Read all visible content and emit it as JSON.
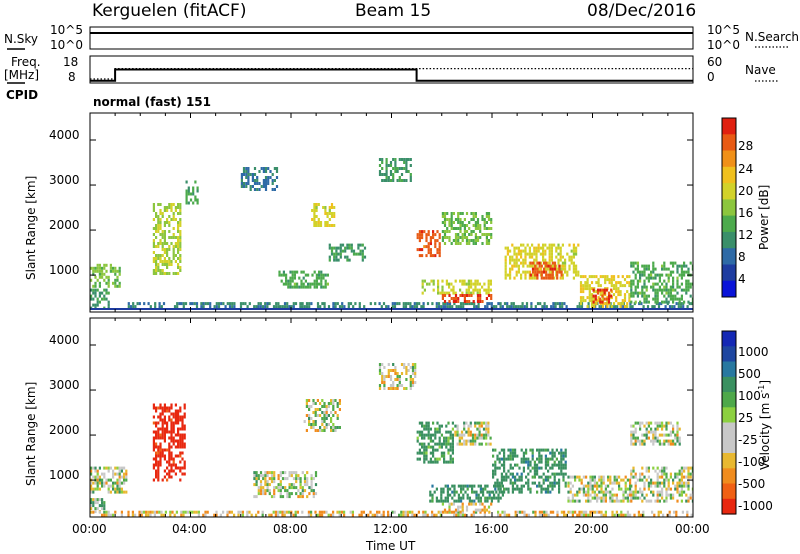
{
  "header": {
    "title": "Kerguelen (fitACF)",
    "beam": "Beam 15",
    "date": "08/Dec/2016"
  },
  "nsky_panel": {
    "label": "N.Sky",
    "left_ticks": [
      "10^5",
      "10^0"
    ],
    "right_label": "N.Search",
    "right_ticks": [
      "10^5",
      "10^0"
    ]
  },
  "freq_panel": {
    "label_line1": "Freq.",
    "label_line2": "[MHz]",
    "left_ticks": [
      "18",
      "8"
    ],
    "right_label": "Nave",
    "right_ticks": [
      "60",
      "0"
    ],
    "freq_segments": [
      {
        "t_start": 0.0,
        "t_end": 1.0,
        "mhz": 8.8
      },
      {
        "t_start": 1.0,
        "t_end": 13.0,
        "mhz": 13.0
      },
      {
        "t_start": 13.0,
        "t_end": 24.0,
        "mhz": 8.8
      }
    ],
    "nave_segments": [
      {
        "t_start": 0.0,
        "t_end": 1.0,
        "value": 9
      },
      {
        "t_start": 1.0,
        "t_end": 24.0,
        "value": 32
      }
    ]
  },
  "cpid_panel": {
    "label": "CPID",
    "program": "normal (fast) 151"
  },
  "colorbars": {
    "power": {
      "label": "Power [dB]",
      "ticks": [
        "4",
        "8",
        "12",
        "16",
        "20",
        "24",
        "28"
      ],
      "colors": [
        "#0a14d8",
        "#1e3ca0",
        "#2e6aa6",
        "#3a8f6a",
        "#4caa4c",
        "#8cc63e",
        "#d2d22a",
        "#f0c01e",
        "#f09018",
        "#e85a14",
        "#e02010"
      ]
    },
    "velocity": {
      "label_main": "Velocity",
      "label_unit": "[m s",
      "label_exp": "-1",
      "label_close": "]",
      "ticks": [
        "1000",
        "500",
        "100",
        "25",
        "-25",
        "-100",
        "-500",
        "-1000"
      ],
      "colors": [
        "#1428b4",
        "#1e46a0",
        "#2878a0",
        "#3a9060",
        "#4ea84a",
        "#8cd040",
        "#c8c8c8",
        "#c8c8c8",
        "#e8b830",
        "#f08c1e",
        "#f06014",
        "#e82810"
      ]
    }
  },
  "axes": {
    "x_ticks": [
      "00:00",
      "04:00",
      "08:00",
      "12:00",
      "16:00",
      "20:00",
      "00:00"
    ],
    "x_label": "Time UT",
    "y_label": "Slant Range [km]",
    "y_ticks": [
      "1000",
      "2000",
      "3000",
      "4000"
    ],
    "y_range_km": [
      180,
      4600
    ],
    "x_range_hours": [
      0,
      24
    ]
  },
  "chart_data": [
    {
      "type": "heatmap",
      "name": "Power [dB]",
      "x_unit": "hours UT",
      "y_unit": "slant range km",
      "xlim": [
        0,
        24
      ],
      "ylim": [
        180,
        4600
      ],
      "clim": [
        0,
        30
      ],
      "regions": [
        {
          "t": [
            0.0,
            1.2
          ],
          "r": [
            700,
            1250
          ],
          "value": 14
        },
        {
          "t": [
            0.0,
            0.8
          ],
          "r": [
            250,
            700
          ],
          "value": 10
        },
        {
          "t": [
            1.5,
            24.0
          ],
          "r": [
            250,
            400
          ],
          "value": 9
        },
        {
          "t": [
            2.5,
            3.6
          ],
          "r": [
            1000,
            2600
          ],
          "value": 16
        },
        {
          "t": [
            3.8,
            4.3
          ],
          "r": [
            2600,
            3100
          ],
          "value": 12
        },
        {
          "t": [
            6.0,
            7.5
          ],
          "r": [
            2900,
            3400
          ],
          "value": 8
        },
        {
          "t": [
            7.5,
            9.5
          ],
          "r": [
            700,
            1100
          ],
          "value": 12
        },
        {
          "t": [
            8.8,
            9.8
          ],
          "r": [
            2100,
            2600
          ],
          "value": 18
        },
        {
          "t": [
            9.5,
            11.0
          ],
          "r": [
            1300,
            1700
          ],
          "value": 10
        },
        {
          "t": [
            11.5,
            12.8
          ],
          "r": [
            3100,
            3600
          ],
          "value": 10
        },
        {
          "t": [
            13.0,
            14.0
          ],
          "r": [
            1400,
            2000
          ],
          "value": 26
        },
        {
          "t": [
            13.2,
            16.0
          ],
          "r": [
            550,
            900
          ],
          "value": 17
        },
        {
          "t": [
            14.0,
            16.0
          ],
          "r": [
            1700,
            2400
          ],
          "value": 14
        },
        {
          "t": [
            14.0,
            16.0
          ],
          "r": [
            380,
            580
          ],
          "value": 27
        },
        {
          "t": [
            16.5,
            19.5
          ],
          "r": [
            900,
            1700
          ],
          "value": 18
        },
        {
          "t": [
            17.5,
            18.8
          ],
          "r": [
            900,
            1300
          ],
          "value": 26
        },
        {
          "t": [
            19.5,
            21.5
          ],
          "r": [
            300,
            1000
          ],
          "value": 19
        },
        {
          "t": [
            20.0,
            20.8
          ],
          "r": [
            350,
            700
          ],
          "value": 28
        },
        {
          "t": [
            21.5,
            24.0
          ],
          "r": [
            400,
            1300
          ],
          "value": 12
        }
      ]
    },
    {
      "type": "heatmap",
      "name": "Velocity [m s-1]",
      "x_unit": "hours UT",
      "y_unit": "slant range km",
      "xlim": [
        0,
        24
      ],
      "ylim": [
        180,
        4600
      ],
      "clim": [
        -1000,
        1000
      ],
      "regions": [
        {
          "t": [
            0.0,
            1.5
          ],
          "r": [
            700,
            1300
          ],
          "value": 0
        },
        {
          "t": [
            0.0,
            0.6
          ],
          "r": [
            250,
            600
          ],
          "value": 50
        },
        {
          "t": [
            0.0,
            24.0
          ],
          "r": [
            200,
            320
          ],
          "value": -60
        },
        {
          "t": [
            2.5,
            3.8
          ],
          "r": [
            1000,
            2700
          ],
          "value": -600
        },
        {
          "t": [
            6.5,
            9.0
          ],
          "r": [
            600,
            1200
          ],
          "value": 0
        },
        {
          "t": [
            8.5,
            10.0
          ],
          "r": [
            2100,
            2800
          ],
          "value": 0
        },
        {
          "t": [
            11.5,
            13.0
          ],
          "r": [
            3000,
            3600
          ],
          "value": 0
        },
        {
          "t": [
            13.0,
            14.5
          ],
          "r": [
            1400,
            2300
          ],
          "value": 150
        },
        {
          "t": [
            14.5,
            16.0
          ],
          "r": [
            1800,
            2300
          ],
          "value": 0
        },
        {
          "t": [
            13.5,
            16.5
          ],
          "r": [
            500,
            900
          ],
          "value": 200
        },
        {
          "t": [
            14.0,
            16.0
          ],
          "r": [
            300,
            500
          ],
          "value": -80
        },
        {
          "t": [
            16.0,
            19.0
          ],
          "r": [
            700,
            1700
          ],
          "value": 200
        },
        {
          "t": [
            19.0,
            21.5
          ],
          "r": [
            500,
            1100
          ],
          "value": 0
        },
        {
          "t": [
            21.5,
            24.0
          ],
          "r": [
            500,
            1300
          ],
          "value": 0
        },
        {
          "t": [
            21.5,
            23.5
          ],
          "r": [
            1800,
            2300
          ],
          "value": 0
        }
      ]
    }
  ]
}
